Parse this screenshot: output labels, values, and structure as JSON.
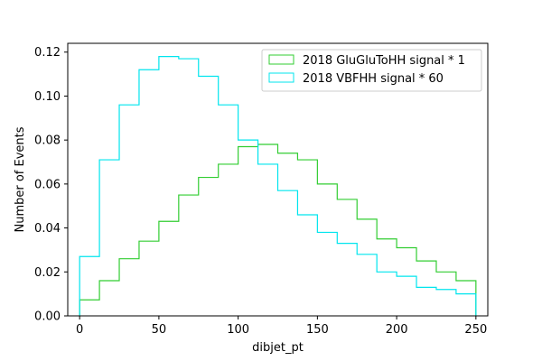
{
  "chart_data": {
    "type": "histogram-step",
    "xlabel": "dibjet_pt",
    "ylabel": "Number of Events",
    "xlim": [
      -7.5,
      257.5
    ],
    "ylim": [
      0,
      0.124
    ],
    "xticks": [
      0,
      50,
      100,
      150,
      200,
      250
    ],
    "yticks": [
      0.0,
      0.02,
      0.04,
      0.06,
      0.08,
      0.1,
      0.12
    ],
    "xtick_labels": [
      "0",
      "50",
      "100",
      "150",
      "200",
      "250"
    ],
    "ytick_labels": [
      "0.00",
      "0.02",
      "0.04",
      "0.06",
      "0.08",
      "0.10",
      "0.12"
    ],
    "bin_edges": [
      0,
      12.5,
      25,
      37.5,
      50,
      62.5,
      75,
      87.5,
      100,
      112.5,
      125,
      137.5,
      150,
      162.5,
      175,
      187.5,
      200,
      212.5,
      225,
      237.5,
      250
    ],
    "grid": false,
    "legend_position": "top-right",
    "series": [
      {
        "name": "2018 GluGluToHH signal * 1",
        "color": "#32cd32",
        "values": [
          0.0073,
          0.016,
          0.026,
          0.034,
          0.043,
          0.055,
          0.063,
          0.069,
          0.077,
          0.078,
          0.074,
          0.071,
          0.06,
          0.053,
          0.044,
          0.035,
          0.031,
          0.025,
          0.02,
          0.016
        ]
      },
      {
        "name": "2018 VBFHH signal * 60",
        "color": "#00e5ee",
        "values": [
          0.027,
          0.071,
          0.096,
          0.112,
          0.118,
          0.117,
          0.109,
          0.096,
          0.08,
          0.069,
          0.057,
          0.046,
          0.038,
          0.033,
          0.028,
          0.02,
          0.018,
          0.013,
          0.012,
          0.01
        ]
      }
    ]
  }
}
